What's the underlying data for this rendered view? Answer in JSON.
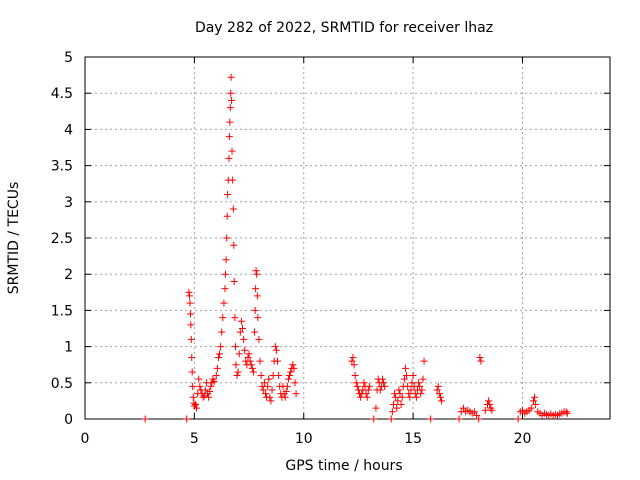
{
  "chart_data": {
    "type": "scatter",
    "title": "Day 282 of 2022, SRMTID for receiver lhaz",
    "xlabel": "GPS time / hours",
    "ylabel": "SRMTID / TECUs",
    "xlim": [
      0,
      24
    ],
    "ylim": [
      0,
      5
    ],
    "xticks": [
      0,
      5,
      10,
      15,
      20
    ],
    "xtick_labels": [
      "0",
      "5",
      "10",
      "15",
      "20"
    ],
    "yticks": [
      0,
      0.5,
      1,
      1.5,
      2,
      2.5,
      3,
      3.5,
      4,
      4.5,
      5
    ],
    "ytick_labels": [
      "0",
      "0.5",
      "1",
      "1.5",
      "2",
      "2.5",
      "3",
      "3.5",
      "4",
      "4.5",
      "5"
    ],
    "grid": true,
    "marker": "plus",
    "color": "#ff0000",
    "series": [
      {
        "name": "SRMTID",
        "points": [
          [
            2.75,
            0.0
          ],
          [
            4.65,
            0.0
          ],
          [
            4.75,
            1.75
          ],
          [
            4.78,
            1.7
          ],
          [
            4.8,
            1.6
          ],
          [
            4.82,
            1.45
          ],
          [
            4.84,
            1.3
          ],
          [
            4.86,
            1.1
          ],
          [
            4.88,
            0.85
          ],
          [
            4.9,
            0.65
          ],
          [
            4.92,
            0.45
          ],
          [
            4.95,
            0.3
          ],
          [
            4.98,
            0.22
          ],
          [
            5.0,
            0.18
          ],
          [
            5.05,
            0.2
          ],
          [
            5.1,
            0.15
          ],
          [
            5.15,
            0.35
          ],
          [
            5.2,
            0.55
          ],
          [
            5.25,
            0.45
          ],
          [
            5.3,
            0.4
          ],
          [
            5.35,
            0.35
          ],
          [
            5.4,
            0.3
          ],
          [
            5.45,
            0.32
          ],
          [
            5.5,
            0.4
          ],
          [
            5.55,
            0.5
          ],
          [
            5.6,
            0.35
          ],
          [
            5.65,
            0.3
          ],
          [
            5.7,
            0.38
          ],
          [
            5.75,
            0.45
          ],
          [
            5.8,
            0.5
          ],
          [
            5.85,
            0.55
          ],
          [
            5.9,
            0.52
          ],
          [
            6.0,
            0.6
          ],
          [
            6.05,
            0.7
          ],
          [
            6.1,
            0.85
          ],
          [
            6.15,
            0.9
          ],
          [
            6.2,
            1.0
          ],
          [
            6.25,
            1.2
          ],
          [
            6.3,
            1.4
          ],
          [
            6.35,
            1.6
          ],
          [
            6.4,
            1.8
          ],
          [
            6.42,
            2.0
          ],
          [
            6.45,
            2.2
          ],
          [
            6.48,
            2.5
          ],
          [
            6.5,
            2.8
          ],
          [
            6.52,
            3.1
          ],
          [
            6.55,
            3.3
          ],
          [
            6.58,
            3.6
          ],
          [
            6.6,
            3.9
          ],
          [
            6.62,
            4.1
          ],
          [
            6.64,
            4.3
          ],
          [
            6.66,
            4.5
          ],
          [
            6.68,
            4.72
          ],
          [
            6.7,
            4.4
          ],
          [
            6.72,
            3.7
          ],
          [
            6.75,
            3.3
          ],
          [
            6.78,
            2.9
          ],
          [
            6.8,
            2.4
          ],
          [
            6.82,
            1.9
          ],
          [
            6.85,
            1.4
          ],
          [
            6.88,
            1.0
          ],
          [
            6.9,
            0.75
          ],
          [
            6.95,
            0.6
          ],
          [
            7.0,
            0.65
          ],
          [
            7.05,
            0.9
          ],
          [
            7.1,
            1.2
          ],
          [
            7.15,
            1.35
          ],
          [
            7.2,
            1.25
          ],
          [
            7.25,
            1.1
          ],
          [
            7.3,
            0.95
          ],
          [
            7.35,
            0.8
          ],
          [
            7.4,
            0.75
          ],
          [
            7.45,
            0.85
          ],
          [
            7.5,
            0.9
          ],
          [
            7.55,
            0.8
          ],
          [
            7.6,
            0.75
          ],
          [
            7.65,
            0.7
          ],
          [
            7.7,
            0.65
          ],
          [
            7.75,
            1.2
          ],
          [
            7.78,
            1.5
          ],
          [
            7.8,
            1.8
          ],
          [
            7.82,
            2.05
          ],
          [
            7.85,
            2.0
          ],
          [
            7.88,
            1.7
          ],
          [
            7.9,
            1.4
          ],
          [
            7.95,
            1.1
          ],
          [
            8.0,
            0.8
          ],
          [
            8.05,
            0.6
          ],
          [
            8.1,
            0.45
          ],
          [
            8.15,
            0.4
          ],
          [
            8.2,
            0.5
          ],
          [
            8.25,
            0.35
          ],
          [
            8.3,
            0.3
          ],
          [
            8.35,
            0.45
          ],
          [
            8.4,
            0.55
          ],
          [
            8.45,
            0.3
          ],
          [
            8.5,
            0.25
          ],
          [
            8.55,
            0.4
          ],
          [
            8.6,
            0.6
          ],
          [
            8.65,
            0.8
          ],
          [
            8.7,
            1.0
          ],
          [
            8.75,
            0.95
          ],
          [
            8.8,
            0.8
          ],
          [
            8.85,
            0.6
          ],
          [
            8.9,
            0.45
          ],
          [
            8.95,
            0.35
          ],
          [
            9.0,
            0.3
          ],
          [
            9.05,
            0.45
          ],
          [
            9.1,
            0.35
          ],
          [
            9.15,
            0.3
          ],
          [
            9.2,
            0.38
          ],
          [
            9.25,
            0.45
          ],
          [
            9.3,
            0.55
          ],
          [
            9.35,
            0.6
          ],
          [
            9.4,
            0.65
          ],
          [
            9.45,
            0.7
          ],
          [
            9.5,
            0.75
          ],
          [
            9.55,
            0.7
          ],
          [
            9.6,
            0.5
          ],
          [
            9.65,
            0.35
          ],
          [
            12.2,
            0.8
          ],
          [
            12.25,
            0.85
          ],
          [
            12.3,
            0.75
          ],
          [
            12.35,
            0.6
          ],
          [
            12.4,
            0.5
          ],
          [
            12.45,
            0.45
          ],
          [
            12.5,
            0.4
          ],
          [
            12.55,
            0.35
          ],
          [
            12.6,
            0.3
          ],
          [
            12.65,
            0.35
          ],
          [
            12.7,
            0.4
          ],
          [
            12.75,
            0.5
          ],
          [
            12.8,
            0.45
          ],
          [
            12.85,
            0.35
          ],
          [
            12.9,
            0.3
          ],
          [
            12.95,
            0.4
          ],
          [
            13.0,
            0.45
          ],
          [
            13.2,
            0.0
          ],
          [
            13.3,
            0.15
          ],
          [
            13.35,
            0.4
          ],
          [
            13.4,
            0.55
          ],
          [
            13.45,
            0.5
          ],
          [
            13.5,
            0.4
          ],
          [
            13.55,
            0.45
          ],
          [
            13.6,
            0.55
          ],
          [
            13.65,
            0.5
          ],
          [
            13.7,
            0.45
          ],
          [
            14.0,
            0.0
          ],
          [
            14.05,
            0.1
          ],
          [
            14.1,
            0.2
          ],
          [
            14.15,
            0.35
          ],
          [
            14.2,
            0.3
          ],
          [
            14.25,
            0.15
          ],
          [
            14.3,
            0.25
          ],
          [
            14.35,
            0.4
          ],
          [
            14.4,
            0.35
          ],
          [
            14.45,
            0.2
          ],
          [
            14.5,
            0.3
          ],
          [
            14.55,
            0.45
          ],
          [
            14.6,
            0.55
          ],
          [
            14.65,
            0.7
          ],
          [
            14.7,
            0.6
          ],
          [
            14.75,
            0.45
          ],
          [
            14.8,
            0.35
          ],
          [
            14.85,
            0.3
          ],
          [
            14.9,
            0.4
          ],
          [
            14.95,
            0.5
          ],
          [
            15.0,
            0.6
          ],
          [
            15.05,
            0.45
          ],
          [
            15.1,
            0.35
          ],
          [
            15.15,
            0.3
          ],
          [
            15.2,
            0.4
          ],
          [
            15.25,
            0.5
          ],
          [
            15.3,
            0.45
          ],
          [
            15.35,
            0.35
          ],
          [
            15.4,
            0.4
          ],
          [
            15.45,
            0.55
          ],
          [
            15.5,
            0.8
          ],
          [
            15.8,
            0.0
          ],
          [
            16.1,
            0.4
          ],
          [
            16.15,
            0.45
          ],
          [
            16.2,
            0.35
          ],
          [
            16.25,
            0.3
          ],
          [
            16.3,
            0.25
          ],
          [
            17.1,
            0.0
          ],
          [
            17.2,
            0.1
          ],
          [
            17.3,
            0.15
          ],
          [
            17.4,
            0.1
          ],
          [
            17.5,
            0.12
          ],
          [
            17.6,
            0.1
          ],
          [
            17.7,
            0.08
          ],
          [
            17.8,
            0.1
          ],
          [
            17.9,
            0.05
          ],
          [
            18.0,
            0.0
          ],
          [
            18.05,
            0.85
          ],
          [
            18.1,
            0.8
          ],
          [
            18.3,
            0.12
          ],
          [
            18.4,
            0.2
          ],
          [
            18.45,
            0.25
          ],
          [
            18.5,
            0.2
          ],
          [
            18.55,
            0.15
          ],
          [
            18.6,
            0.12
          ],
          [
            19.8,
            0.0
          ],
          [
            19.9,
            0.1
          ],
          [
            20.0,
            0.12
          ],
          [
            20.1,
            0.08
          ],
          [
            20.2,
            0.1
          ],
          [
            20.3,
            0.12
          ],
          [
            20.4,
            0.15
          ],
          [
            20.5,
            0.25
          ],
          [
            20.55,
            0.3
          ],
          [
            20.6,
            0.2
          ],
          [
            20.7,
            0.1
          ],
          [
            20.8,
            0.08
          ],
          [
            20.9,
            0.05
          ],
          [
            21.0,
            0.08
          ],
          [
            21.1,
            0.06
          ],
          [
            21.2,
            0.05
          ],
          [
            21.3,
            0.07
          ],
          [
            21.4,
            0.05
          ],
          [
            21.5,
            0.06
          ],
          [
            21.6,
            0.05
          ],
          [
            21.7,
            0.07
          ],
          [
            21.8,
            0.08
          ],
          [
            21.9,
            0.1
          ],
          [
            22.0,
            0.1
          ],
          [
            22.05,
            0.08
          ]
        ]
      }
    ]
  }
}
